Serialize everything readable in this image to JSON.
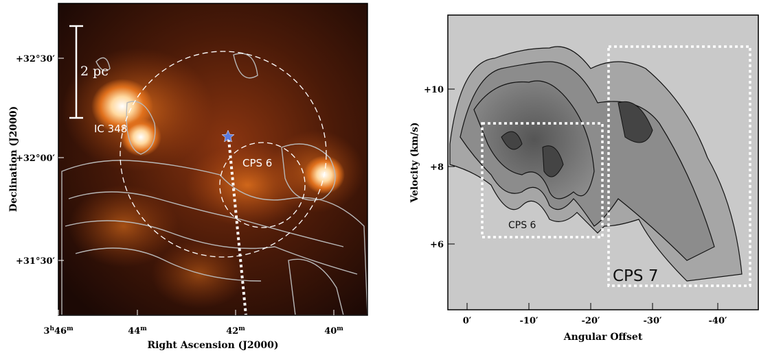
{
  "left_panel": {
    "x_label": "Right Ascension (J2000)",
    "y_label": "Declination (J2000)",
    "x_ticks": [
      [
        "3",
        "h",
        "46",
        "m"
      ],
      [
        "44",
        "m"
      ],
      [
        "42",
        "m"
      ],
      [
        "40",
        "m"
      ]
    ],
    "y_ticks": [
      "+32°30′",
      "+32°00′",
      "+31°30′"
    ],
    "scale_bar": "2 pc",
    "annotations": [
      "IC 348",
      "CPS 6"
    ]
  },
  "right_panel": {
    "x_label": "Angular Offset",
    "y_label": "Velocity (km/s)",
    "x_ticks": [
      "0′",
      "-10′",
      "-20′",
      "-30′",
      "-40′"
    ],
    "y_ticks": [
      "+10",
      "+8",
      "+6"
    ],
    "boxes": [
      "CPS 6",
      "CPS 7"
    ]
  }
}
